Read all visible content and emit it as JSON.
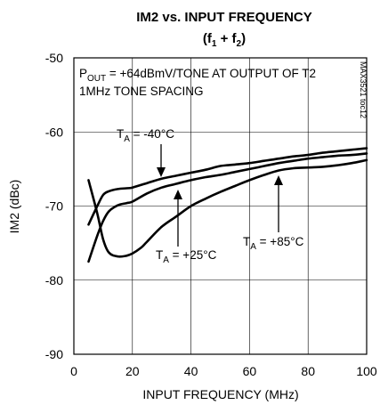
{
  "chart_data": {
    "type": "line",
    "title": "IM2 vs. INPUT FREQUENCY",
    "subtitle": {
      "base": "(f",
      "sub1": "1",
      "mid": " + f",
      "sub2": "2",
      "end": ")"
    },
    "xlabel": "INPUT FREQUENCY (MHz)",
    "ylabel": "IM2 (dBc)",
    "xlim": [
      0,
      100
    ],
    "ylim": [
      -90,
      -50
    ],
    "xticks": [
      "0",
      "20",
      "40",
      "60",
      "80",
      "100"
    ],
    "yticks": [
      "-50",
      "-60",
      "-70",
      "-80",
      "-90"
    ],
    "xtick_values": [
      0,
      20,
      40,
      60,
      80,
      100
    ],
    "ytick_values": [
      -50,
      -60,
      -70,
      -80,
      -90
    ],
    "grid": true,
    "annotations": {
      "condition_line1": {
        "pre": "P",
        "sub": "OUT",
        "post": " = +64dBmV/TONE AT OUTPUT OF T2"
      },
      "condition_line2": "1MHz TONE SPACING",
      "code": "MAX3521 toc12"
    },
    "series": [
      {
        "label": {
          "pre": "T",
          "sub": "A",
          "post": " = -40°C"
        },
        "x": [
          5,
          8,
          10,
          12,
          15,
          18,
          20,
          25,
          30,
          35,
          40,
          45,
          50,
          55,
          60,
          65,
          70,
          75,
          80,
          85,
          90,
          95,
          100
        ],
        "y": [
          -72.5,
          -70,
          -68.5,
          -68.0,
          -67.7,
          -67.6,
          -67.5,
          -66.9,
          -66.3,
          -65.9,
          -65.5,
          -65.1,
          -64.6,
          -64.4,
          -64.2,
          -63.9,
          -63.6,
          -63.3,
          -63.1,
          -62.8,
          -62.6,
          -62.4,
          -62.2
        ]
      },
      {
        "label": {
          "pre": "T",
          "sub": "A",
          "post": " = +25°C"
        },
        "x": [
          5,
          8,
          10,
          12,
          15,
          18,
          20,
          25,
          30,
          35,
          40,
          45,
          50,
          55,
          60,
          65,
          70,
          75,
          80,
          85,
          90,
          95,
          100
        ],
        "y": [
          -77.5,
          -74,
          -72,
          -70.7,
          -69.9,
          -69.6,
          -69.4,
          -68.3,
          -67.5,
          -67.0,
          -66.5,
          -66.1,
          -65.8,
          -65.4,
          -65.0,
          -64.6,
          -64.2,
          -63.9,
          -63.6,
          -63.4,
          -63.2,
          -63.1,
          -62.9
        ]
      },
      {
        "label": {
          "pre": "T",
          "sub": "A",
          "post": " = +85°C"
        },
        "x": [
          5,
          8,
          10,
          12,
          15,
          18,
          20,
          23,
          25,
          30,
          35,
          40,
          45,
          50,
          55,
          60,
          65,
          70,
          75,
          80,
          85,
          90,
          95,
          100
        ],
        "y": [
          -66.5,
          -71,
          -74.5,
          -76.3,
          -76.8,
          -76.7,
          -76.4,
          -75.6,
          -74.8,
          -72.8,
          -71.4,
          -70.0,
          -69.0,
          -68.1,
          -67.3,
          -66.5,
          -65.8,
          -65.2,
          -64.9,
          -64.8,
          -64.7,
          -64.5,
          -64.2,
          -63.8
        ]
      }
    ]
  }
}
